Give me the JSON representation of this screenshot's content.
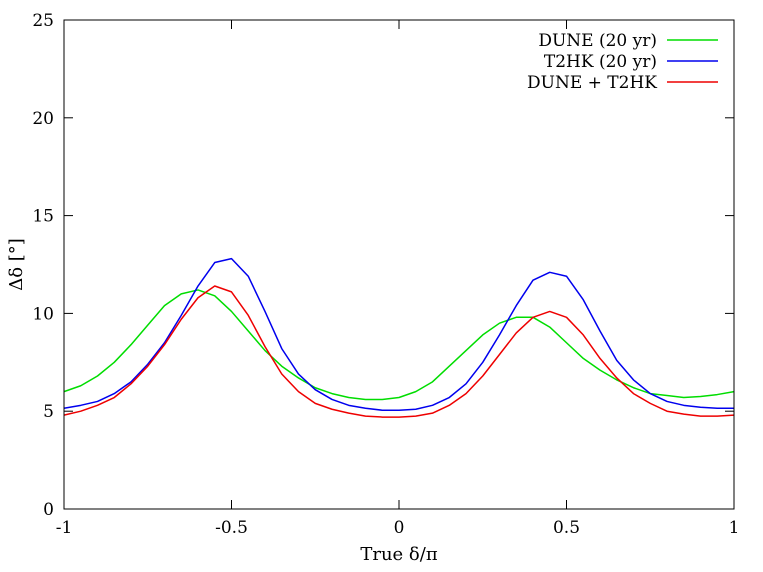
{
  "chart_data": {
    "type": "line",
    "title": "",
    "xlabel": "True δ/π",
    "ylabel": "Δδ [°]",
    "xlim": [
      -1,
      1
    ],
    "ylim": [
      0,
      25
    ],
    "x_ticks": [
      -1,
      -0.5,
      0,
      0.5,
      1
    ],
    "x_tick_labels": [
      "-1",
      "-0.5",
      "0",
      "0.5",
      "1"
    ],
    "y_ticks": [
      0,
      5,
      10,
      15,
      20,
      25
    ],
    "y_tick_labels": [
      "0",
      "5",
      "10",
      "15",
      "20",
      "25"
    ],
    "grid": false,
    "legend_position": "top-right",
    "x": [
      -1.0,
      -0.95,
      -0.9,
      -0.85,
      -0.8,
      -0.75,
      -0.7,
      -0.65,
      -0.6,
      -0.55,
      -0.5,
      -0.45,
      -0.4,
      -0.35,
      -0.3,
      -0.25,
      -0.2,
      -0.15,
      -0.1,
      -0.05,
      0.0,
      0.05,
      0.1,
      0.15,
      0.2,
      0.25,
      0.3,
      0.35,
      0.4,
      0.45,
      0.5,
      0.55,
      0.6,
      0.65,
      0.7,
      0.75,
      0.8,
      0.85,
      0.9,
      0.95,
      1.0
    ],
    "series": [
      {
        "name": "DUNE (20 yr)",
        "color": "#00dd00",
        "values": [
          6.0,
          6.3,
          6.8,
          7.5,
          8.4,
          9.4,
          10.4,
          11.0,
          11.2,
          10.9,
          10.1,
          9.1,
          8.1,
          7.3,
          6.7,
          6.2,
          5.9,
          5.7,
          5.6,
          5.6,
          5.7,
          6.0,
          6.5,
          7.3,
          8.1,
          8.9,
          9.5,
          9.8,
          9.8,
          9.3,
          8.5,
          7.7,
          7.1,
          6.6,
          6.2,
          5.9,
          5.8,
          5.7,
          5.75,
          5.85,
          6.0
        ]
      },
      {
        "name": "T2HK (20 yr)",
        "color": "#0000ee",
        "values": [
          5.15,
          5.3,
          5.5,
          5.9,
          6.5,
          7.4,
          8.5,
          9.9,
          11.4,
          12.6,
          12.8,
          11.9,
          10.1,
          8.2,
          6.9,
          6.1,
          5.6,
          5.3,
          5.15,
          5.05,
          5.05,
          5.1,
          5.3,
          5.7,
          6.4,
          7.5,
          8.9,
          10.4,
          11.7,
          12.1,
          11.9,
          10.7,
          9.1,
          7.6,
          6.6,
          5.9,
          5.5,
          5.3,
          5.2,
          5.15,
          5.15
        ]
      },
      {
        "name": "DUNE + T2HK",
        "color": "#ee0000",
        "values": [
          4.8,
          5.0,
          5.3,
          5.7,
          6.4,
          7.3,
          8.4,
          9.7,
          10.8,
          11.4,
          11.1,
          9.9,
          8.3,
          6.9,
          6.0,
          5.4,
          5.1,
          4.9,
          4.75,
          4.7,
          4.7,
          4.75,
          4.9,
          5.3,
          5.9,
          6.8,
          7.9,
          9.0,
          9.8,
          10.1,
          9.8,
          8.9,
          7.7,
          6.7,
          5.9,
          5.4,
          5.0,
          4.85,
          4.75,
          4.75,
          4.8
        ]
      }
    ]
  }
}
